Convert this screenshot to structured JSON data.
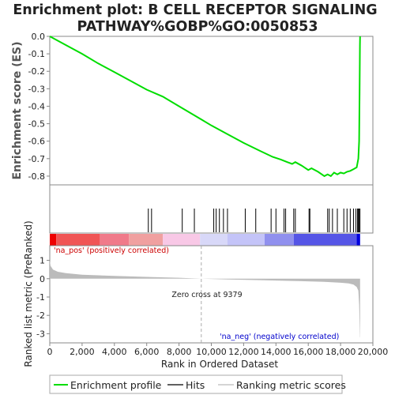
{
  "chart_data": {
    "type": "line",
    "title_line1": "Enrichment plot: B CELL RECEPTOR SIGNALING",
    "title_line2": "PATHWAY%GOBP%GO:0050853",
    "top_panel": {
      "ylabel": "Enrichment score (ES)",
      "ylim": [
        -0.85,
        0.0
      ],
      "yticks": [
        "0.0",
        "-0.1",
        "-0.2",
        "-0.3",
        "-0.4",
        "-0.5",
        "-0.6",
        "-0.7",
        "-0.8"
      ],
      "ytick_values": [
        0.0,
        -0.1,
        -0.2,
        -0.3,
        -0.4,
        -0.5,
        -0.6,
        -0.7,
        -0.8
      ],
      "series": [
        {
          "name": "Enrichment profile",
          "color": "#00dd00",
          "x": [
            0,
            1000,
            2000,
            3000,
            4000,
            5000,
            6000,
            7000,
            8000,
            9000,
            10000,
            11000,
            12000,
            13000,
            13800,
            14300,
            14700,
            15000,
            15200,
            15600,
            16000,
            16200,
            16600,
            17000,
            17200,
            17400,
            17600,
            17800,
            18000,
            18200,
            18400,
            18600,
            18800,
            19000,
            19100,
            19150,
            19180,
            19200,
            19210
          ],
          "y": [
            0.0,
            -0.05,
            -0.1,
            -0.155,
            -0.205,
            -0.255,
            -0.305,
            -0.345,
            -0.4,
            -0.455,
            -0.51,
            -0.56,
            -0.61,
            -0.655,
            -0.69,
            -0.705,
            -0.72,
            -0.73,
            -0.72,
            -0.74,
            -0.765,
            -0.755,
            -0.775,
            -0.8,
            -0.79,
            -0.8,
            -0.78,
            -0.79,
            -0.78,
            -0.785,
            -0.775,
            -0.77,
            -0.76,
            -0.75,
            -0.7,
            -0.6,
            -0.3,
            -0.05,
            0.0
          ]
        }
      ]
    },
    "hits": [
      6100,
      6300,
      8200,
      8950,
      10150,
      10300,
      10500,
      10750,
      11000,
      12100,
      12750,
      13700,
      14000,
      14500,
      14600,
      15100,
      15200,
      16050,
      16100,
      17200,
      17300,
      17500,
      17800,
      18200,
      18400,
      18600,
      18800,
      18950,
      19050,
      19100,
      19150,
      19200
    ],
    "bottom_panel": {
      "ylabel": "Ranked list metric (PreRanked)",
      "ylim": [
        -3.5,
        1.8
      ],
      "yticks": [
        "1",
        "0",
        "-1",
        "-2",
        "-3"
      ],
      "ytick_values": [
        1,
        0,
        -1,
        -2,
        -3
      ],
      "zero_cross_label": "Zero cross at 9379",
      "zero_cross": 9379,
      "pos_label": "'na_pos' (positively correlated)",
      "neg_label": "'na_neg' (negatively correlated)",
      "metric_profile": {
        "x": [
          0,
          50,
          200,
          500,
          1000,
          2000,
          4000,
          6000,
          8000,
          9379,
          11000,
          13000,
          15000,
          17000,
          18000,
          18500,
          18800,
          19000,
          19100,
          19150,
          19200,
          19210
        ],
        "y": [
          1.0,
          0.7,
          0.5,
          0.38,
          0.3,
          0.22,
          0.15,
          0.1,
          0.05,
          0.0,
          -0.04,
          -0.08,
          -0.12,
          -0.17,
          -0.22,
          -0.26,
          -0.32,
          -0.45,
          -0.65,
          -1.4,
          -3.2,
          -3.2
        ]
      }
    },
    "xaxis": {
      "label": "Rank in Ordered Dataset",
      "xlim": [
        0,
        20000
      ],
      "ticks": [
        "0",
        "2,000",
        "4,000",
        "6,000",
        "8,000",
        "10,000",
        "12,000",
        "14,000",
        "16,000",
        "18,000",
        "20,000"
      ],
      "tick_values": [
        0,
        2000,
        4000,
        6000,
        8000,
        10000,
        12000,
        14000,
        16000,
        18000,
        20000
      ]
    },
    "legend": {
      "placement": "bottom",
      "entries": [
        {
          "label": "Enrichment profile",
          "color": "#00dd00"
        },
        {
          "label": "Hits",
          "color": "#000000"
        },
        {
          "label": "Ranking metric scores",
          "color": "#bbbbbb"
        }
      ]
    },
    "colors": {
      "pos_text": "#cc0000",
      "neg_text": "#0000cc",
      "metric_fill": "#bbbbbb",
      "bar_pos_dark": "#ee0000",
      "bar_neg_dark": "#0000dd"
    }
  }
}
